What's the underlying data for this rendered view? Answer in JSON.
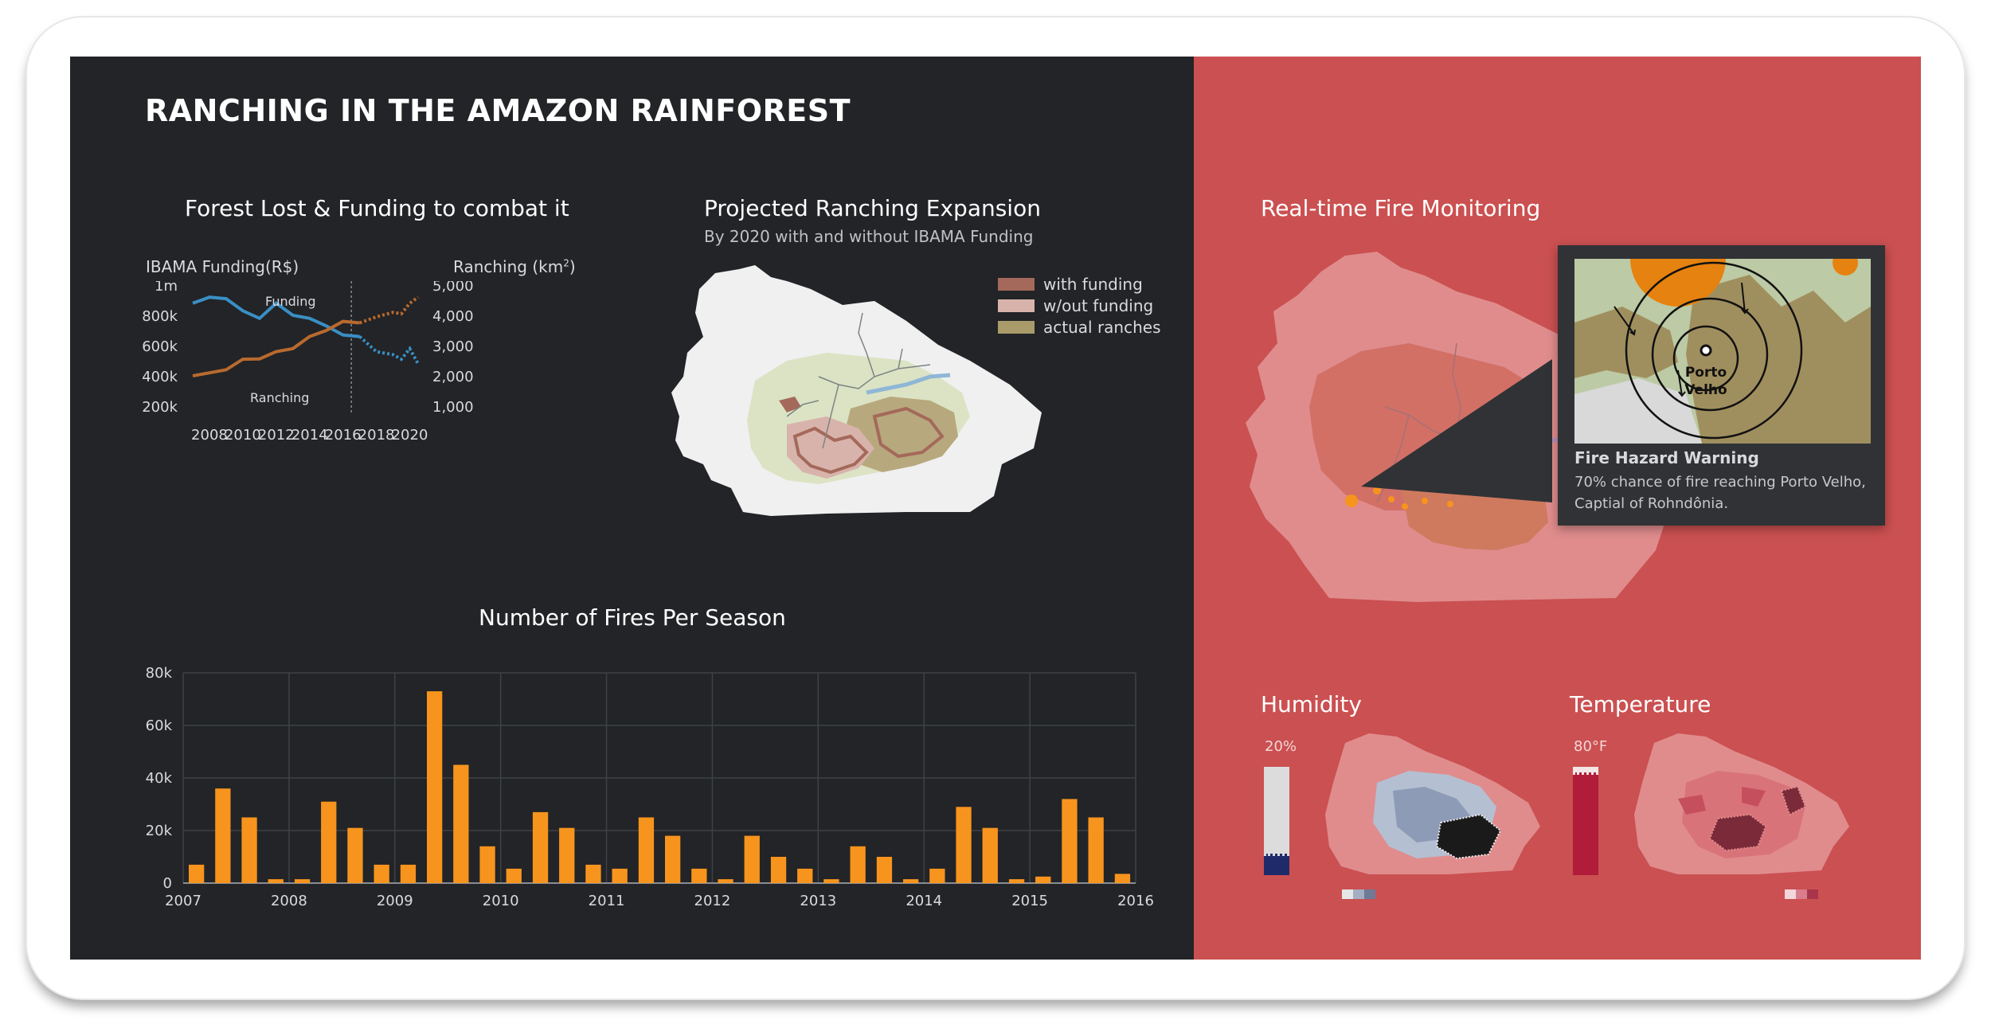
{
  "dashboard": {
    "title": "RANCHING IN THE AMAZON RAINFOREST"
  },
  "forest_chart": {
    "title": "Forest Lost & Funding to combat it",
    "left_axis_label": "IBAMA Funding(R$)",
    "right_axis_label_text": "Ranching (km",
    "right_axis_label_sup": "2",
    "right_axis_label_close": ")",
    "funding_series_label": "Funding",
    "ranching_series_label": "Ranching",
    "left_ticks": [
      "1m",
      "800k",
      "600k",
      "400k",
      "200k"
    ],
    "right_ticks": [
      "5,000",
      "4,000",
      "3,000",
      "2,000",
      "1,000"
    ],
    "x_ticks": [
      "2008",
      "2010",
      "2012",
      "2014",
      "2016",
      "2018",
      "2020"
    ],
    "colors": {
      "funding": "#3a8fc4",
      "ranching": "#b86a2e"
    }
  },
  "projection": {
    "title": "Projected Ranching Expansion",
    "subtitle": "By 2020 with and without IBAMA Funding",
    "legend": [
      {
        "label": "with funding",
        "color": "#a4695b"
      },
      {
        "label": "w/out funding",
        "color": "#d8b3ab"
      },
      {
        "label": "actual ranches",
        "color": "#aa9b6a"
      }
    ]
  },
  "fires_chart": {
    "title": "Number of Fires Per Season",
    "color": "#f7941d"
  },
  "fire_monitor": {
    "title": "Real-time Fire Monitoring",
    "popup": {
      "map_label_line1": "Porto",
      "map_label_line2": "Velho",
      "title": "Fire Hazard Warning",
      "body": "70% chance of fire reaching Porto Velho, Captial of Rohndônia."
    }
  },
  "humidity": {
    "title": "Humidity",
    "value_label": "20%",
    "level": 0.2
  },
  "temperature": {
    "title": "Temperature",
    "value_label": "80°F",
    "level": 0.95
  },
  "chart_data": [
    {
      "type": "line",
      "title": "Forest Lost & Funding to combat it",
      "x": [
        2007,
        2008,
        2009,
        2010,
        2011,
        2012,
        2013,
        2014,
        2015,
        2016,
        2017,
        2018,
        2019,
        2019.5,
        2020,
        2020.5
      ],
      "series": [
        {
          "name": "Funding",
          "axis": "left",
          "unit": "R$",
          "color": "#3a8fc4",
          "values": [
            880000,
            920000,
            910000,
            830000,
            780000,
            880000,
            800000,
            780000,
            730000,
            670000,
            660000,
            560000,
            540000,
            510000,
            580000,
            480000
          ],
          "projected_from": 2016
        },
        {
          "name": "Ranching",
          "axis": "right",
          "unit": "km2",
          "color": "#b86a2e",
          "values": [
            2000,
            2100,
            2200,
            2550,
            2560,
            2800,
            2900,
            3300,
            3500,
            3800,
            3750,
            3950,
            4100,
            4050,
            4400,
            4600
          ],
          "projected_from": 2016
        }
      ],
      "left_ylim": [
        200000,
        1000000
      ],
      "right_ylim": [
        1000,
        5000
      ],
      "projection_start": 2016.5
    },
    {
      "type": "bar",
      "title": "Number of Fires Per Season",
      "x_ticks": [
        "2007",
        "2008",
        "2009",
        "2010",
        "2011",
        "2012",
        "2013",
        "2014",
        "2015",
        "2016"
      ],
      "values": [
        7000,
        36000,
        25000,
        1500,
        1500,
        31000,
        21000,
        7000,
        7000,
        73000,
        45000,
        14000,
        5500,
        27000,
        21000,
        7000,
        5500,
        25000,
        18000,
        5500,
        1500,
        18000,
        10000,
        5500,
        1500,
        14000,
        10000,
        1500,
        5500,
        29000,
        21000,
        1500,
        2500,
        32000,
        25000,
        3500
      ],
      "y_ticks": [
        "80k",
        "60k",
        "40k",
        "20k",
        "0"
      ],
      "ylim": [
        0,
        80000
      ],
      "grid": true,
      "color": "#f7941d"
    }
  ]
}
